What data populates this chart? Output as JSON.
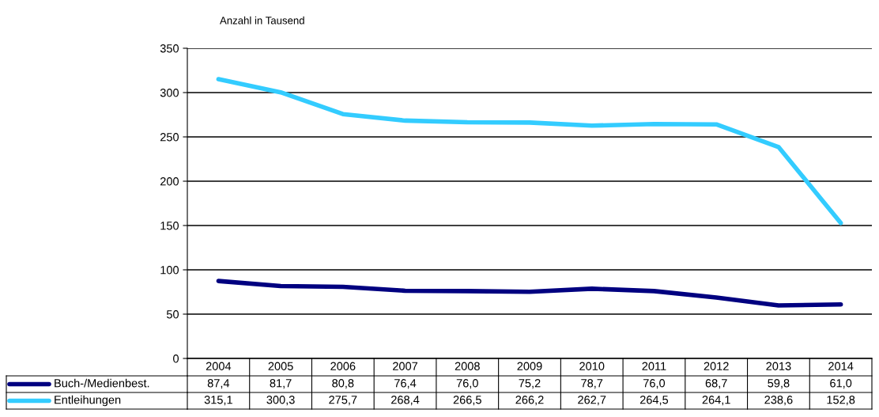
{
  "chart_data": {
    "type": "line",
    "ylabel": "Anzahl in Tausend",
    "categories": [
      "2004",
      "2005",
      "2006",
      "2007",
      "2008",
      "2009",
      "2010",
      "2011",
      "2012",
      "2013",
      "2014"
    ],
    "series": [
      {
        "name": "Buch-/Medienbest.",
        "color": "#000080",
        "values": [
          87.4,
          81.7,
          80.8,
          76.4,
          76.0,
          75.2,
          78.7,
          76.0,
          68.7,
          59.8,
          61.0
        ],
        "value_labels": [
          "87,4",
          "81,7",
          "80,8",
          "76,4",
          "76,0",
          "75,2",
          "78,7",
          "76,0",
          "68,7",
          "59,8",
          "61,0"
        ]
      },
      {
        "name": "Entleihungen",
        "color": "#33ccff",
        "values": [
          315.1,
          300.3,
          275.7,
          268.4,
          266.5,
          266.2,
          262.7,
          264.5,
          264.1,
          238.6,
          152.8
        ],
        "value_labels": [
          "315,1",
          "300,3",
          "275,7",
          "268,4",
          "266,5",
          "266,2",
          "262,7",
          "264,5",
          "264,1",
          "238,6",
          "152,8"
        ]
      }
    ],
    "ylim": [
      0,
      350
    ],
    "yticks": [
      0,
      50,
      100,
      150,
      200,
      250,
      300,
      350
    ],
    "grid": "y",
    "legend": "bottom",
    "marker": "none",
    "line_style": "solid"
  }
}
